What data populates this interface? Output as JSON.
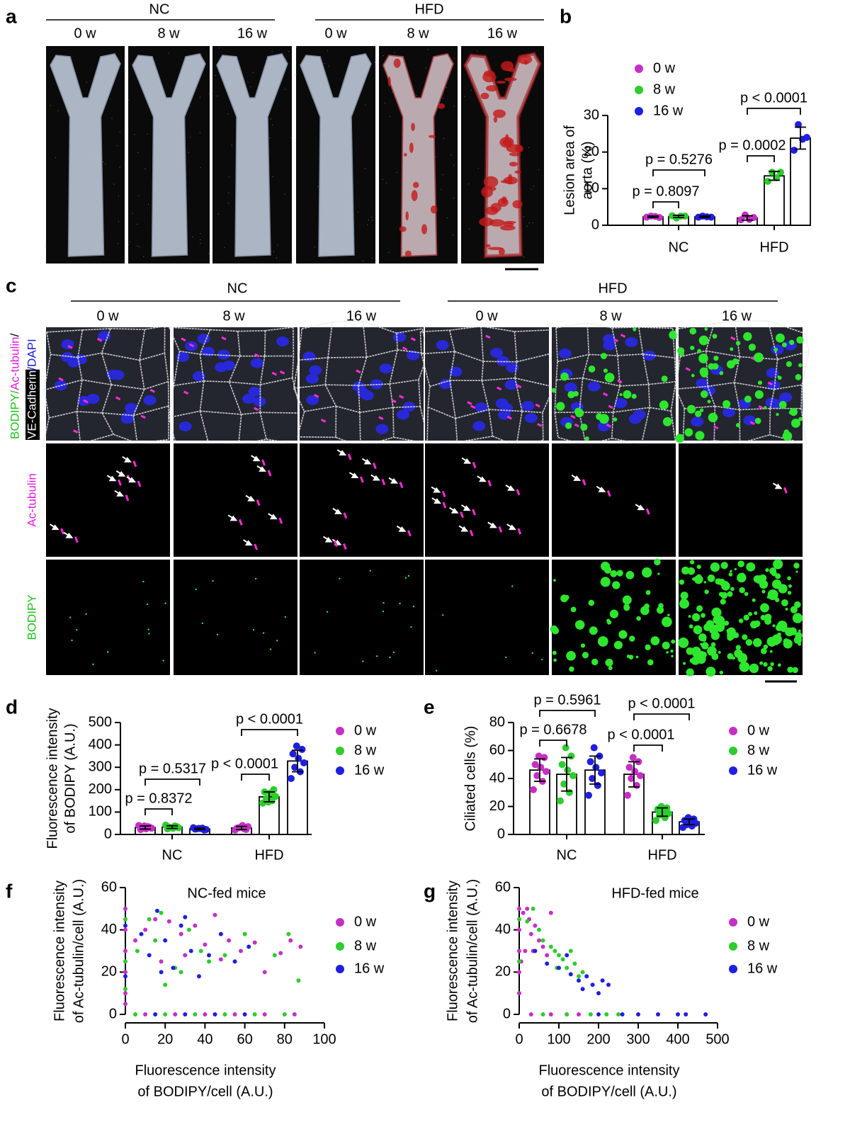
{
  "panel_labels": [
    "a",
    "b",
    "c",
    "d",
    "e",
    "f",
    "g"
  ],
  "panel_a": {
    "groups": [
      {
        "label": "NC",
        "times": [
          "0 w",
          "8 w",
          "16 w"
        ]
      },
      {
        "label": "HFD",
        "times": [
          "0 w",
          "8 w",
          "16 w"
        ]
      }
    ]
  },
  "panel_c": {
    "groups": [
      {
        "label": "NC",
        "times": [
          "0 w",
          "8 w",
          "16 w"
        ]
      },
      {
        "label": "HFD",
        "times": [
          "0 w",
          "8 w",
          "16 w"
        ]
      }
    ],
    "row_labels": [
      [
        [
          "BODIPY/",
          "Ac-tubulin",
          "/"
        ],
        [
          "VE-Cadherin",
          "/DAPI"
        ]
      ],
      [
        [
          "Ac-tubulin"
        ]
      ],
      [
        [
          "BODIPY"
        ]
      ]
    ]
  },
  "chart_data": [
    {
      "type": "bar",
      "ylabel": [
        "Lesion area of",
        "aorta (%)"
      ],
      "categories": [
        "NC",
        "HFD"
      ],
      "ylim": [
        0,
        30
      ],
      "yticks": [
        0,
        10,
        20,
        30
      ],
      "series": [
        {
          "name": "0 w",
          "color": "#c62fc6",
          "values": [
            2.3,
            2.0
          ],
          "errors": [
            0.2,
            0.6
          ],
          "points": [
            [
              2.2,
              2.5,
              2.4,
              2.1
            ],
            [
              1.5,
              2.8,
              1.6,
              2.1
            ]
          ]
        },
        {
          "name": "8 w",
          "color": "#2ecc2e",
          "values": [
            2.4,
            13.5
          ],
          "errors": [
            0.3,
            1.2
          ],
          "points": [
            [
              2.6,
              2.0,
              2.5,
              2.5
            ],
            [
              12.0,
              14.5,
              13.0,
              14.5
            ]
          ]
        },
        {
          "name": "16 w",
          "color": "#1f1fe0",
          "values": [
            2.3,
            23.8
          ],
          "errors": [
            0.2,
            3.0
          ],
          "points": [
            [
              2.2,
              2.5,
              2.3,
              2.2
            ],
            [
              20.5,
              27.5,
              23.5,
              24.0
            ]
          ]
        }
      ],
      "annotations": [
        "p = 0.8097",
        "p = 0.5276",
        "p = 0.0002",
        "p < 0.0001"
      ]
    },
    {
      "type": "bar",
      "ylabel": [
        "Fluorescence intensity",
        "of BODIPY (A.U.)"
      ],
      "categories": [
        "NC",
        "HFD"
      ],
      "ylim": [
        0,
        500
      ],
      "yticks": [
        0,
        100,
        200,
        300,
        400,
        500
      ],
      "series": [
        {
          "name": "0 w",
          "color": "#c62fc6",
          "values": [
            31,
            29
          ],
          "errors": [
            7,
            7
          ],
          "points": [
            [
              40,
              35,
              30,
              28,
              25,
              22,
              32,
              38
            ],
            [
              20,
              25,
              30,
              35,
              40,
              28,
              22,
              32
            ]
          ]
        },
        {
          "name": "8 w",
          "color": "#2ecc2e",
          "values": [
            33,
            168
          ],
          "errors": [
            6,
            22
          ],
          "points": [
            [
              42,
              38,
              33,
              30,
              28,
              25,
              35,
              30
            ],
            [
              140,
              150,
              160,
              170,
              185,
              190,
              200,
              145
            ]
          ]
        },
        {
          "name": "16 w",
          "color": "#1f1fe0",
          "values": [
            25,
            328
          ],
          "errors": [
            3,
            48
          ],
          "points": [
            [
              30,
              28,
              25,
              22,
              26,
              24,
              20,
              27
            ],
            [
              250,
              280,
              300,
              320,
              340,
              360,
              380,
              395
            ]
          ]
        }
      ],
      "annotations": [
        "p = 0.8372",
        "p = 0.5317",
        "p < 0.0001",
        "p < 0.0001"
      ]
    },
    {
      "type": "bar",
      "ylabel": [
        "Ciliated cells (%)"
      ],
      "categories": [
        "NC",
        "HFD"
      ],
      "ylim": [
        0,
        80
      ],
      "yticks": [
        0,
        20,
        40,
        60,
        80
      ],
      "series": [
        {
          "name": "0 w",
          "color": "#c62fc6",
          "values": [
            46,
            43
          ],
          "errors": [
            8,
            9
          ],
          "points": [
            [
              32,
              38,
              42,
              45,
              48,
              50,
              55,
              56
            ],
            [
              28,
              35,
              40,
              42,
              45,
              48,
              52,
              55
            ]
          ]
        },
        {
          "name": "8 w",
          "color": "#2ecc2e",
          "values": [
            43,
            16
          ],
          "errors": [
            12,
            3
          ],
          "points": [
            [
              24,
              30,
              36,
              42,
              46,
              50,
              56,
              62
            ],
            [
              10,
              12,
              14,
              15,
              16,
              18,
              19,
              20
            ]
          ]
        },
        {
          "name": "16 w",
          "color": "#1f1fe0",
          "values": [
            46,
            9
          ],
          "errors": [
            10,
            2
          ],
          "points": [
            [
              28,
              35,
              40,
              44,
              48,
              52,
              56,
              62
            ],
            [
              5,
              6,
              7,
              8,
              9,
              10,
              11,
              12
            ]
          ]
        }
      ],
      "annotations": [
        "p = 0.6678",
        "p = 0.5961",
        "p < 0.0001",
        "p < 0.0001"
      ]
    },
    {
      "type": "scatter",
      "title": "NC-fed mice",
      "xlabel": [
        "Fluorescence intensity",
        "of BODIPY/cell (A.U.)"
      ],
      "ylabel": [
        "Fluorescence intensity",
        "of Ac-tubulin/cell (A.U.)"
      ],
      "xlim": [
        0,
        100
      ],
      "xticks": [
        0,
        20,
        40,
        60,
        80,
        100
      ],
      "ylim": [
        0,
        60
      ],
      "yticks": [
        0,
        20,
        40,
        60
      ],
      "series": [
        {
          "name": "0 w",
          "color": "#c62fc6",
          "x": [
            5,
            10,
            15,
            22,
            28,
            35,
            40,
            45,
            52,
            58,
            65,
            70,
            78,
            83,
            88,
            18,
            30,
            48,
            0,
            0,
            0,
            0,
            0,
            0,
            10,
            25,
            40,
            55,
            70,
            85
          ],
          "y": [
            35,
            40,
            45,
            44,
            38,
            42,
            33,
            47,
            35,
            30,
            34,
            20,
            29,
            35,
            32,
            25,
            28,
            26,
            50,
            40,
            30,
            20,
            10,
            5,
            0,
            0,
            0,
            0,
            0,
            0
          ]
        },
        {
          "name": "8 w",
          "color": "#2ecc2e",
          "x": [
            6,
            12,
            18,
            20,
            25,
            32,
            38,
            42,
            50,
            60,
            75,
            82,
            87,
            15,
            28,
            0,
            0,
            0,
            5,
            20,
            35,
            50,
            65,
            80
          ],
          "y": [
            30,
            45,
            48,
            14,
            22,
            40,
            30,
            25,
            28,
            38,
            28,
            38,
            16,
            35,
            20,
            45,
            25,
            12,
            0,
            0,
            0,
            0,
            0,
            0
          ]
        },
        {
          "name": "16 w",
          "color": "#1f1fe0",
          "x": [
            8,
            12,
            16,
            20,
            24,
            28,
            33,
            37,
            42,
            48,
            55,
            62,
            18,
            30,
            0,
            0,
            15,
            30,
            45,
            60
          ],
          "y": [
            38,
            28,
            49,
            35,
            22,
            42,
            30,
            18,
            28,
            38,
            25,
            32,
            20,
            46,
            42,
            18,
            0,
            0,
            0,
            0
          ]
        }
      ]
    },
    {
      "type": "scatter",
      "title": "HFD-fed mice",
      "xlabel": [
        "Fluorescence intensity",
        "of BODIPY/cell (A.U.)"
      ],
      "ylabel": [
        "Fluorescence intensity",
        "of Ac-tubulin/cell (A.U.)"
      ],
      "xlim": [
        0,
        500
      ],
      "xticks": [
        0,
        100,
        200,
        300,
        400,
        500
      ],
      "ylim": [
        0,
        60
      ],
      "yticks": [
        0,
        20,
        40,
        60
      ],
      "series": [
        {
          "name": "0 w",
          "color": "#c62fc6",
          "x": [
            10,
            20,
            25,
            30,
            40,
            50,
            60,
            70,
            80,
            35,
            15,
            5,
            0,
            0,
            0,
            0,
            0,
            30,
            80,
            120,
            150
          ],
          "y": [
            48,
            50,
            45,
            38,
            42,
            35,
            32,
            28,
            48,
            30,
            30,
            25,
            50,
            40,
            30,
            20,
            10,
            0,
            0,
            0,
            0
          ]
        },
        {
          "name": "8 w",
          "color": "#2ecc2e",
          "x": [
            20,
            35,
            50,
            60,
            80,
            90,
            100,
            110,
            120,
            130,
            140,
            150,
            160,
            95,
            0,
            0,
            60,
            120,
            180,
            220,
            250
          ],
          "y": [
            44,
            50,
            40,
            35,
            32,
            30,
            28,
            26,
            22,
            30,
            24,
            18,
            20,
            22,
            45,
            25,
            0,
            0,
            0,
            0,
            0
          ]
        },
        {
          "name": "16 w",
          "color": "#1f1fe0",
          "x": [
            40,
            70,
            100,
            130,
            150,
            160,
            170,
            185,
            200,
            210,
            225,
            120,
            200,
            260,
            300,
            350,
            400,
            420,
            470
          ],
          "y": [
            30,
            24,
            22,
            19,
            16,
            12,
            18,
            14,
            10,
            16,
            14,
            28,
            0,
            0,
            0,
            0,
            0,
            0,
            0
          ]
        }
      ]
    }
  ]
}
